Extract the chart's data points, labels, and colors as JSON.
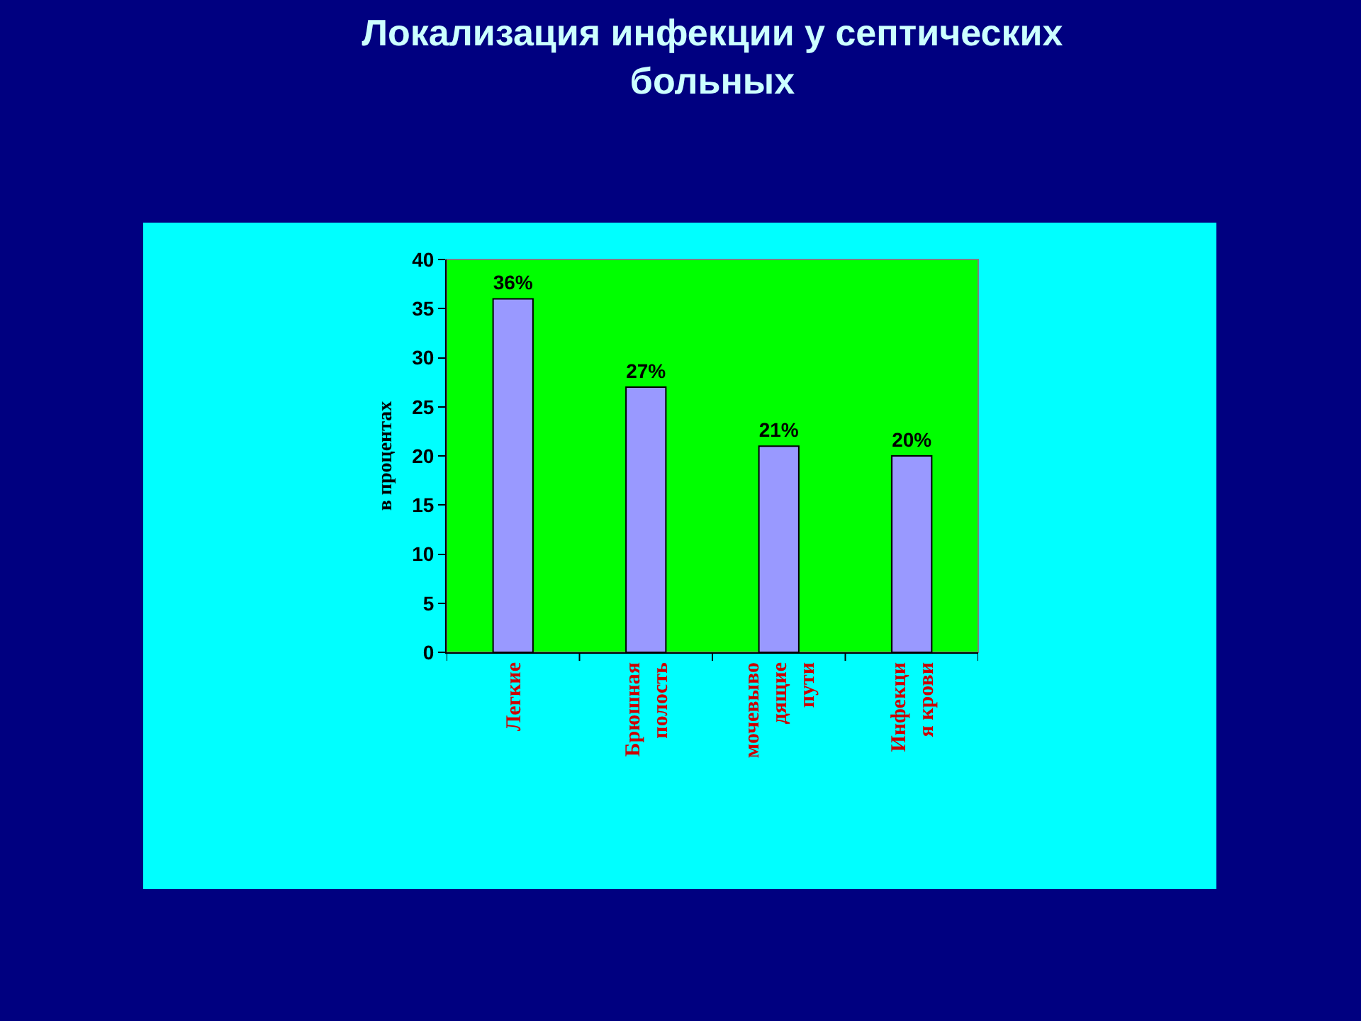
{
  "chart_data": {
    "type": "bar",
    "title": "Локализация инфекции у септических\nбольных",
    "ylabel": "в процентах",
    "categories": [
      "Легкие",
      "Брюшная\nполость",
      "мочевыво\nдящие\nпути",
      "Инфекци\nя крови"
    ],
    "values": [
      36,
      27,
      21,
      20
    ],
    "value_labels": [
      "36%",
      "27%",
      "21%",
      "20%"
    ],
    "color": "#9999ff",
    "ylim": [
      0,
      40
    ],
    "yticks": [
      0,
      5,
      10,
      15,
      20,
      25,
      30,
      35,
      40
    ],
    "grid": false
  }
}
